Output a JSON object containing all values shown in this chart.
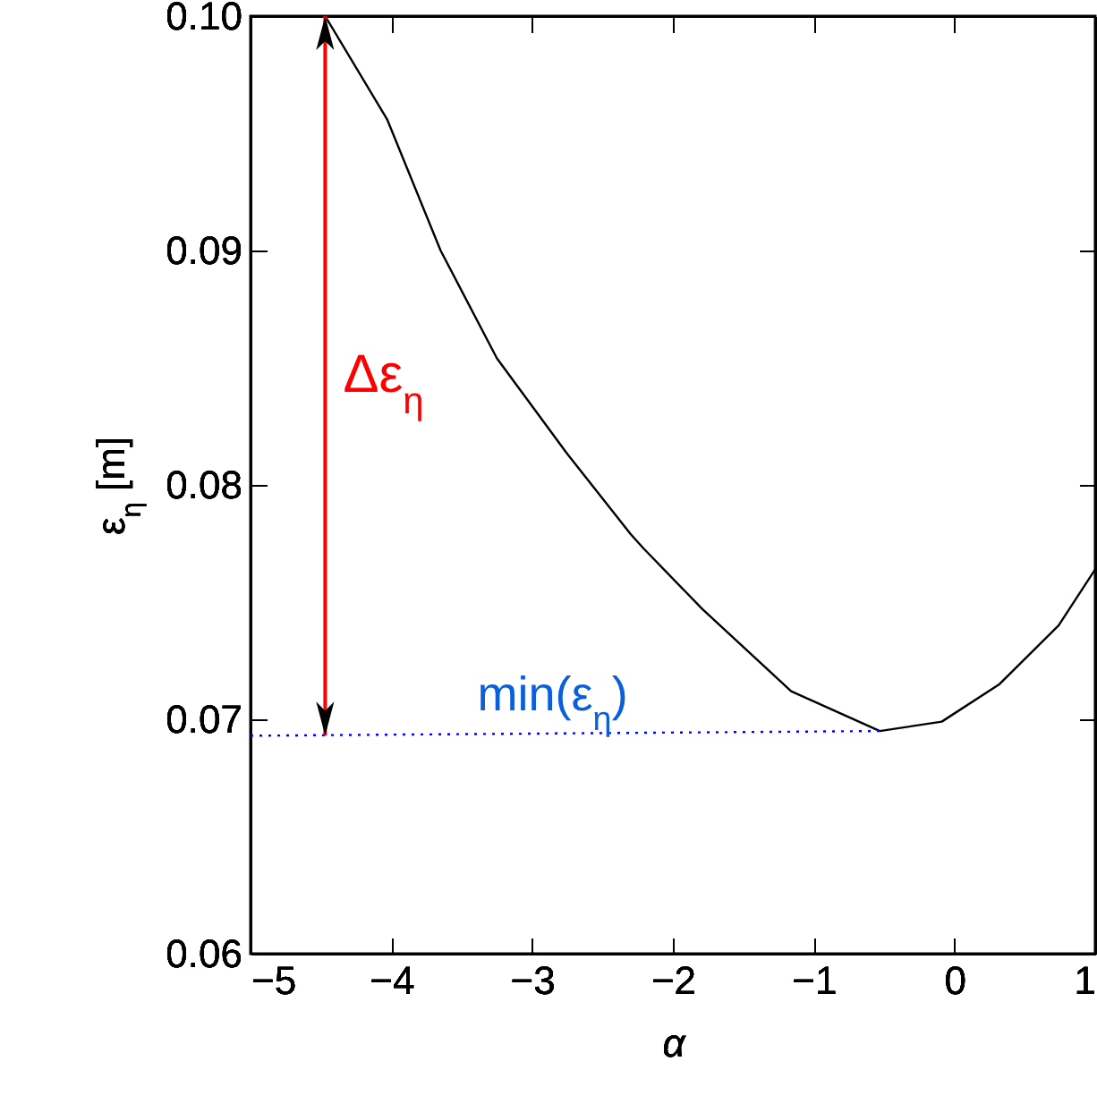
{
  "chart_data": {
    "type": "line",
    "xlabel": "α",
    "ylabel": "ε$_{η}$ [m]",
    "xlim": [
      -5,
      1
    ],
    "xticks": [
      -5,
      -4,
      -3,
      -2,
      -1,
      0,
      1
    ],
    "ylim": [
      0.06,
      0.1
    ],
    "yticks": [
      0.06,
      0.07,
      0.08,
      0.09,
      {
        "value": 0.1,
        "label": "0.10"
      }
    ],
    "grid": false,
    "series": [
      {
        "color": "#000000",
        "line_style": "solid",
        "x": [
          -4.47,
          -4.03,
          -3.65,
          -3.25,
          -2.76,
          -2.3,
          -2.21,
          -1.79,
          -1.16,
          -0.53,
          -0.09,
          0.32,
          0.74,
          1.0
        ],
        "values": [
          0.1,
          0.0956,
          0.09,
          0.0854,
          0.0814,
          0.0779,
          0.0773,
          0.0747,
          0.0712,
          0.0695,
          0.0699,
          0.0715,
          0.074,
          0.0764
        ]
      },
      {
        "color": "#0000ff",
        "line_style": "dotted",
        "x": [
          -5,
          -0.53
        ],
        "values": [
          0.0693,
          0.0695
        ]
      }
    ],
    "annotations": [
      "Δε$_{η}$",
      "min(ε$_{η}$)"
    ]
  }
}
